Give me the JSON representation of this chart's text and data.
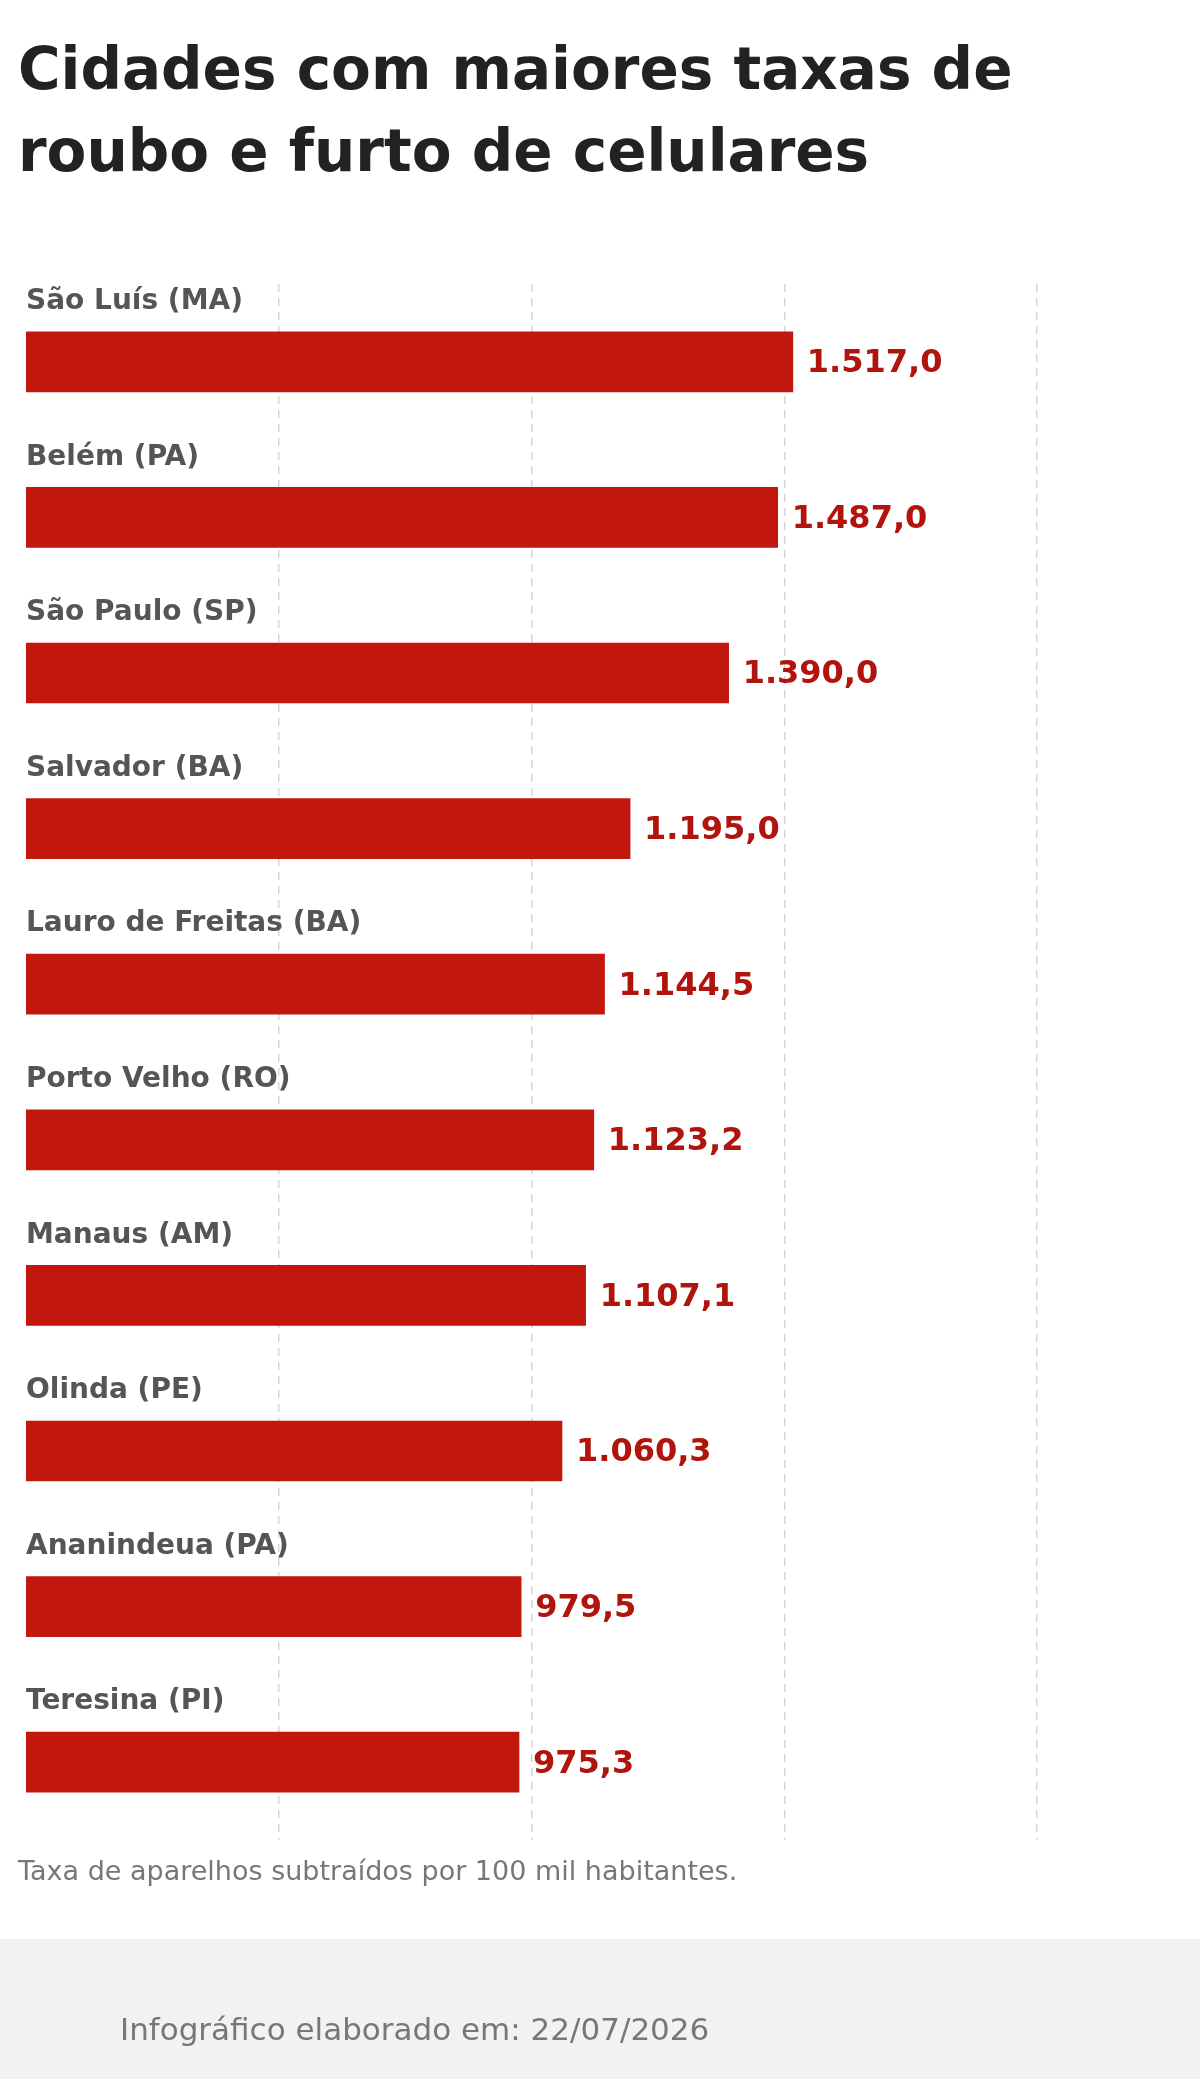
{
  "chart_data": {
    "type": "bar",
    "orientation": "horizontal",
    "title": "Cidades com maiores taxas de roubo e furto de celulares",
    "categories": [
      "São Luís (MA)",
      "Belém (PA)",
      "São Paulo (SP)",
      "Salvador (BA)",
      "Lauro de Freitas (BA)",
      "Porto Velho (RO)",
      "Manaus (AM)",
      "Olinda (PE)",
      "Ananindeua (PA)",
      "Teresina (PI)"
    ],
    "values": [
      1517.0,
      1487.0,
      1390.0,
      1195.0,
      1144.5,
      1123.2,
      1107.1,
      1060.3,
      979.5,
      975.3
    ],
    "value_labels": [
      "1.517,0",
      "1.487,0",
      "1.390,0",
      "1.195,0",
      "1.144,5",
      "1.123,2",
      "1.107,1",
      "1.060,3",
      "979,5",
      "975,3"
    ],
    "color": "#c1170d",
    "xlim": [
      0,
      2000
    ],
    "xticks": [
      {
        "value": 500,
        "label": null
      },
      {
        "value": 1000,
        "label": null
      },
      {
        "value": 1500,
        "label": null
      },
      {
        "value": 2000,
        "label": null
      }
    ],
    "grid": "x",
    "tick_labels": false,
    "annotations": [
      "Taxa de aparelhos subtraídos por 100 mil habitantes.",
      "Infográfico elaborado em: 22/07/2026"
    ]
  }
}
